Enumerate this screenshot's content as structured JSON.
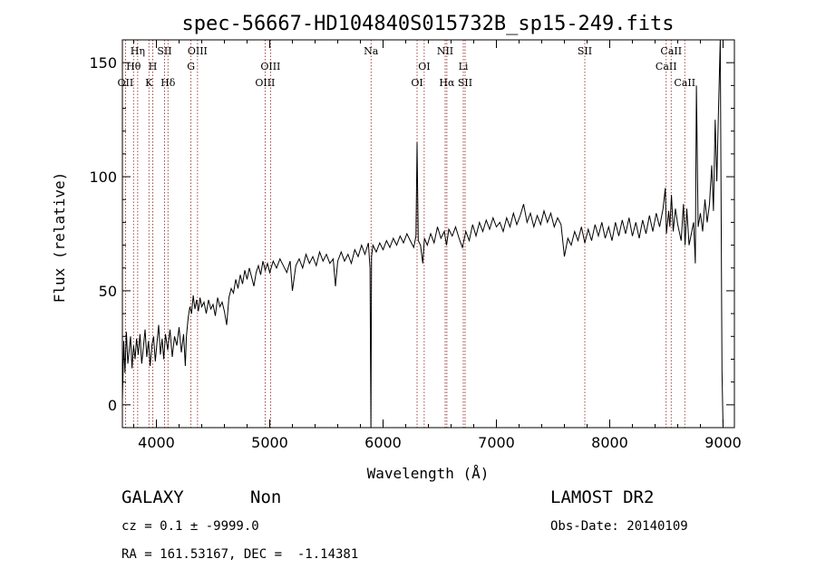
{
  "chart_data": {
    "type": "line",
    "title": "spec-56667-HD104840S015732B_sp15-249.fits",
    "xlabel": "Wavelength (Å)",
    "ylabel": "Flux (relative)",
    "xlim": [
      3700,
      9100
    ],
    "ylim": [
      -10,
      160
    ],
    "xticks": [
      4000,
      5000,
      6000,
      7000,
      8000,
      9000
    ],
    "yticks": [
      0,
      50,
      100,
      150
    ],
    "grid": false,
    "series": [
      {
        "points": [
          [
            3700,
            2
          ],
          [
            3712,
            28
          ],
          [
            3722,
            14
          ],
          [
            3735,
            32
          ],
          [
            3748,
            18
          ],
          [
            3760,
            24
          ],
          [
            3772,
            30
          ],
          [
            3785,
            16
          ],
          [
            3798,
            26
          ],
          [
            3812,
            20
          ],
          [
            3825,
            29
          ],
          [
            3840,
            22
          ],
          [
            3855,
            31
          ],
          [
            3870,
            18
          ],
          [
            3885,
            25
          ],
          [
            3900,
            33
          ],
          [
            3915,
            21
          ],
          [
            3930,
            28
          ],
          [
            3945,
            17
          ],
          [
            3960,
            26
          ],
          [
            3975,
            30
          ],
          [
            3990,
            19
          ],
          [
            4005,
            27
          ],
          [
            4020,
            35
          ],
          [
            4035,
            22
          ],
          [
            4050,
            29
          ],
          [
            4065,
            20
          ],
          [
            4080,
            31
          ],
          [
            4100,
            24
          ],
          [
            4120,
            33
          ],
          [
            4140,
            21
          ],
          [
            4160,
            30
          ],
          [
            4180,
            26
          ],
          [
            4200,
            34
          ],
          [
            4220,
            23
          ],
          [
            4240,
            31
          ],
          [
            4255,
            17
          ],
          [
            4265,
            30
          ],
          [
            4280,
            38
          ],
          [
            4295,
            43
          ],
          [
            4310,
            40
          ],
          [
            4325,
            48
          ],
          [
            4340,
            42
          ],
          [
            4355,
            46
          ],
          [
            4370,
            41
          ],
          [
            4385,
            47
          ],
          [
            4400,
            43
          ],
          [
            4420,
            45
          ],
          [
            4440,
            40
          ],
          [
            4460,
            46
          ],
          [
            4480,
            42
          ],
          [
            4500,
            44
          ],
          [
            4520,
            39
          ],
          [
            4540,
            47
          ],
          [
            4560,
            43
          ],
          [
            4580,
            45
          ],
          [
            4600,
            41
          ],
          [
            4620,
            35
          ],
          [
            4640,
            47
          ],
          [
            4660,
            51
          ],
          [
            4680,
            49
          ],
          [
            4700,
            55
          ],
          [
            4720,
            51
          ],
          [
            4740,
            57
          ],
          [
            4760,
            53
          ],
          [
            4780,
            59
          ],
          [
            4800,
            55
          ],
          [
            4820,
            60
          ],
          [
            4840,
            56
          ],
          [
            4860,
            52
          ],
          [
            4880,
            58
          ],
          [
            4900,
            61
          ],
          [
            4920,
            57
          ],
          [
            4940,
            63
          ],
          [
            4960,
            59
          ],
          [
            4980,
            62
          ],
          [
            5000,
            58
          ],
          [
            5030,
            63
          ],
          [
            5060,
            60
          ],
          [
            5090,
            64
          ],
          [
            5120,
            61
          ],
          [
            5150,
            58
          ],
          [
            5180,
            63
          ],
          [
            5200,
            50
          ],
          [
            5230,
            61
          ],
          [
            5260,
            64
          ],
          [
            5290,
            60
          ],
          [
            5320,
            66
          ],
          [
            5350,
            62
          ],
          [
            5380,
            65
          ],
          [
            5410,
            61
          ],
          [
            5440,
            67
          ],
          [
            5470,
            63
          ],
          [
            5500,
            66
          ],
          [
            5530,
            62
          ],
          [
            5560,
            64
          ],
          [
            5580,
            52
          ],
          [
            5600,
            63
          ],
          [
            5630,
            67
          ],
          [
            5660,
            63
          ],
          [
            5690,
            66
          ],
          [
            5720,
            62
          ],
          [
            5750,
            68
          ],
          [
            5780,
            65
          ],
          [
            5810,
            70
          ],
          [
            5840,
            66
          ],
          [
            5870,
            71
          ],
          [
            5885,
            60
          ],
          [
            5893,
            -10
          ],
          [
            5898,
            65
          ],
          [
            5910,
            70
          ],
          [
            5940,
            67
          ],
          [
            5970,
            71
          ],
          [
            6000,
            68
          ],
          [
            6030,
            72
          ],
          [
            6060,
            69
          ],
          [
            6090,
            73
          ],
          [
            6120,
            70
          ],
          [
            6150,
            74
          ],
          [
            6180,
            71
          ],
          [
            6210,
            75
          ],
          [
            6240,
            72
          ],
          [
            6270,
            69
          ],
          [
            6290,
            74
          ],
          [
            6300,
            115
          ],
          [
            6310,
            72
          ],
          [
            6330,
            70
          ],
          [
            6350,
            62
          ],
          [
            6365,
            73
          ],
          [
            6390,
            70
          ],
          [
            6420,
            75
          ],
          [
            6450,
            71
          ],
          [
            6480,
            78
          ],
          [
            6510,
            73
          ],
          [
            6540,
            76
          ],
          [
            6560,
            70
          ],
          [
            6580,
            77
          ],
          [
            6610,
            74
          ],
          [
            6640,
            78
          ],
          [
            6670,
            73
          ],
          [
            6700,
            69
          ],
          [
            6730,
            76
          ],
          [
            6760,
            72
          ],
          [
            6790,
            79
          ],
          [
            6820,
            74
          ],
          [
            6850,
            80
          ],
          [
            6880,
            76
          ],
          [
            6910,
            81
          ],
          [
            6940,
            77
          ],
          [
            6970,
            82
          ],
          [
            7000,
            78
          ],
          [
            7030,
            80
          ],
          [
            7060,
            76
          ],
          [
            7090,
            82
          ],
          [
            7120,
            78
          ],
          [
            7150,
            84
          ],
          [
            7180,
            79
          ],
          [
            7210,
            83
          ],
          [
            7240,
            88
          ],
          [
            7270,
            80
          ],
          [
            7300,
            84
          ],
          [
            7330,
            78
          ],
          [
            7360,
            83
          ],
          [
            7390,
            79
          ],
          [
            7420,
            85
          ],
          [
            7450,
            80
          ],
          [
            7480,
            84
          ],
          [
            7510,
            78
          ],
          [
            7540,
            82
          ],
          [
            7570,
            79
          ],
          [
            7600,
            65
          ],
          [
            7630,
            73
          ],
          [
            7660,
            70
          ],
          [
            7690,
            76
          ],
          [
            7720,
            72
          ],
          [
            7750,
            78
          ],
          [
            7780,
            71
          ],
          [
            7810,
            77
          ],
          [
            7840,
            72
          ],
          [
            7870,
            79
          ],
          [
            7900,
            74
          ],
          [
            7930,
            80
          ],
          [
            7960,
            73
          ],
          [
            7990,
            78
          ],
          [
            8020,
            72
          ],
          [
            8050,
            80
          ],
          [
            8080,
            74
          ],
          [
            8110,
            81
          ],
          [
            8140,
            75
          ],
          [
            8170,
            82
          ],
          [
            8200,
            74
          ],
          [
            8230,
            80
          ],
          [
            8260,
            73
          ],
          [
            8290,
            81
          ],
          [
            8320,
            75
          ],
          [
            8350,
            83
          ],
          [
            8380,
            76
          ],
          [
            8410,
            84
          ],
          [
            8440,
            78
          ],
          [
            8470,
            86
          ],
          [
            8490,
            95
          ],
          [
            8500,
            75
          ],
          [
            8520,
            85
          ],
          [
            8530,
            78
          ],
          [
            8545,
            92
          ],
          [
            8560,
            76
          ],
          [
            8580,
            86
          ],
          [
            8600,
            79
          ],
          [
            8630,
            72
          ],
          [
            8650,
            88
          ],
          [
            8665,
            70
          ],
          [
            8680,
            86
          ],
          [
            8700,
            70
          ],
          [
            8720,
            75
          ],
          [
            8740,
            80
          ],
          [
            8755,
            62
          ],
          [
            8765,
            140
          ],
          [
            8780,
            78
          ],
          [
            8800,
            84
          ],
          [
            8820,
            76
          ],
          [
            8840,
            90
          ],
          [
            8860,
            80
          ],
          [
            8880,
            88
          ],
          [
            8900,
            105
          ],
          [
            8915,
            85
          ],
          [
            8930,
            125
          ],
          [
            8945,
            98
          ],
          [
            8960,
            130
          ],
          [
            8975,
            160
          ],
          [
            8990,
            15
          ],
          [
            9000,
            -10
          ]
        ]
      }
    ],
    "line_labels": [
      {
        "label": "OII",
        "wavelength": 3727,
        "row": 3
      },
      {
        "label": "Hθ",
        "wavelength": 3798,
        "row": 2
      },
      {
        "label": "Hη",
        "wavelength": 3835,
        "row": 1
      },
      {
        "label": "K",
        "wavelength": 3934,
        "row": 3
      },
      {
        "label": "H",
        "wavelength": 3968,
        "row": 2
      },
      {
        "label": "SII",
        "wavelength": 4072,
        "row": 1
      },
      {
        "label": "Hδ",
        "wavelength": 4102,
        "row": 3
      },
      {
        "label": "G",
        "wavelength": 4305,
        "row": 2
      },
      {
        "label": "OIII",
        "wavelength": 4363,
        "row": 1
      },
      {
        "label": "OIII",
        "wavelength": 4959,
        "row": 3
      },
      {
        "label": "OIII",
        "wavelength": 5007,
        "row": 2
      },
      {
        "label": "Na",
        "wavelength": 5894,
        "row": 1
      },
      {
        "label": "OI",
        "wavelength": 6300,
        "row": 3
      },
      {
        "label": "OI",
        "wavelength": 6363,
        "row": 2
      },
      {
        "label": "NII",
        "wavelength": 6548,
        "row": 1
      },
      {
        "label": "Hα",
        "wavelength": 6563,
        "row": 3
      },
      {
        "label": "Li",
        "wavelength": 6708,
        "row": 2
      },
      {
        "label": "SII",
        "wavelength": 6724,
        "row": 3
      },
      {
        "label": "SII",
        "wavelength": 7780,
        "row": 1
      },
      {
        "label": "CaII",
        "wavelength": 8498,
        "row": 2
      },
      {
        "label": "CaII",
        "wavelength": 8542,
        "row": 1
      },
      {
        "label": "CaII",
        "wavelength": 8662,
        "row": 3
      }
    ]
  },
  "footer": {
    "classification": "GALAXY",
    "subclass": "Non",
    "cz": "cz = 0.1 ± -9999.0",
    "coords": "RA = 161.53167, DEC =  -1.14381",
    "survey": "LAMOST DR2",
    "obs_date": "Obs-Date: 20140109"
  },
  "colors": {
    "spectrum": "#000000",
    "marker_lines": "#8b1a1a",
    "axes": "#000000"
  }
}
